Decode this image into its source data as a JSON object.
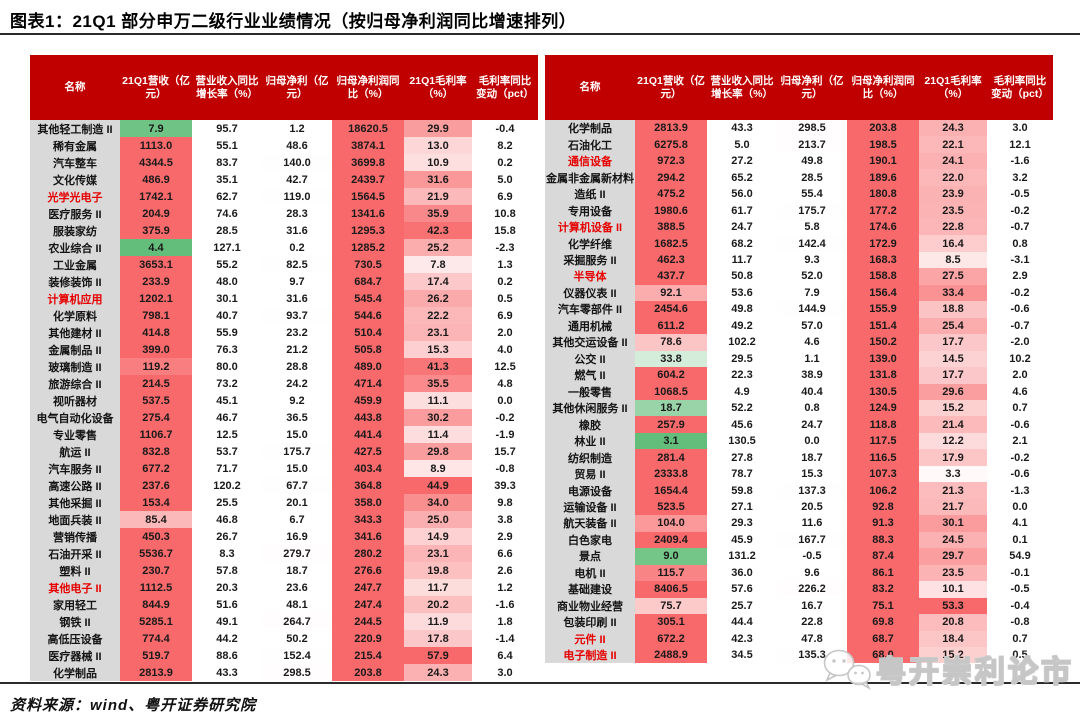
{
  "page": {
    "title": "图表1：21Q1 部分申万二级行业业绩情况（按归母净利润同比增速排列）",
    "source": "资料来源：wind、粤开证券研究院",
    "watermark_text": "粤开崇利论市",
    "watermark_icon": "wechat-chat-bubbles-icon"
  },
  "colors": {
    "header_bg": "#C00000",
    "header_text": "#FFFFFF",
    "name_col_bg": "#D9D9D9",
    "body_text": "#1A1A1A",
    "title_text": "#000000",
    "divider": "#2B2B2B",
    "highlight_name_text": "#E60000",
    "heat_red": "#F8696B",
    "heat_mid": "#FFFFFF",
    "heat_green": "#63BE7B",
    "watermark_gray": "#C6C6C6"
  },
  "chart_data": {
    "type": "table",
    "title": "21Q1 部分申万二级行业业绩情况（按归母净利润同比增速排列）",
    "columns": [
      "名称",
      "21Q1营收（亿元）",
      "营业收入同比增长率（%）",
      "归母净利（亿元）",
      "归母净利润同比（%）",
      "21Q1毛利率（%）",
      "毛利率同比变动（pct）"
    ],
    "heatmap_columns": {
      "1": {
        "min": 4.9,
        "mid": 45,
        "max": 131.2
      },
      "3": {
        "min": 0,
        "mid": 0,
        "max": 18620.5
      },
      "4": {
        "min": 3.3,
        "mid": 22.5,
        "max": 57.9
      },
      "5": {
        "min": -4.0,
        "mid": 1.5,
        "max": 45
      }
    },
    "tables": [
      {
        "side": "left",
        "rows": [
          {
            "name": "其他轻工制造 II",
            "red": false,
            "values": [
              7.9,
              95.7,
              1.2,
              18620.5,
              29.9,
              -0.4
            ]
          },
          {
            "name": "稀有金属",
            "red": false,
            "values": [
              1113.0,
              55.1,
              48.6,
              3874.1,
              13.0,
              8.2
            ]
          },
          {
            "name": "汽车整车",
            "red": false,
            "values": [
              4344.5,
              83.7,
              140.0,
              3699.8,
              10.9,
              0.2
            ]
          },
          {
            "name": "文化传媒",
            "red": false,
            "values": [
              486.9,
              35.1,
              42.7,
              2439.7,
              31.6,
              5.0
            ]
          },
          {
            "name": "光学光电子",
            "red": true,
            "values": [
              1742.1,
              62.7,
              119.0,
              1564.5,
              21.9,
              6.9
            ]
          },
          {
            "name": "医疗服务 II",
            "red": false,
            "values": [
              204.9,
              74.6,
              28.3,
              1341.6,
              35.9,
              10.8
            ]
          },
          {
            "name": "服装家纺",
            "red": false,
            "values": [
              375.9,
              28.5,
              31.6,
              1295.3,
              42.3,
              15.8
            ]
          },
          {
            "name": "农业综合 II",
            "red": false,
            "values": [
              4.4,
              127.1,
              0.2,
              1285.2,
              25.2,
              -2.3
            ]
          },
          {
            "name": "工业金属",
            "red": false,
            "values": [
              3653.1,
              55.2,
              82.5,
              730.5,
              7.8,
              1.3
            ]
          },
          {
            "name": "装修装饰 II",
            "red": false,
            "values": [
              233.9,
              48.0,
              9.7,
              684.7,
              17.4,
              0.2
            ]
          },
          {
            "name": "计算机应用",
            "red": true,
            "values": [
              1202.1,
              30.1,
              31.6,
              545.4,
              26.2,
              0.5
            ]
          },
          {
            "name": "化学原料",
            "red": false,
            "values": [
              798.1,
              40.7,
              93.7,
              544.6,
              22.2,
              6.9
            ]
          },
          {
            "name": "其他建材 II",
            "red": false,
            "values": [
              414.8,
              55.9,
              23.2,
              510.4,
              23.1,
              2.0
            ]
          },
          {
            "name": "金属制品 II",
            "red": false,
            "values": [
              399.0,
              76.3,
              21.2,
              505.8,
              15.3,
              4.0
            ]
          },
          {
            "name": "玻璃制造 II",
            "red": false,
            "values": [
              119.2,
              80.0,
              28.8,
              489.0,
              41.3,
              12.5
            ]
          },
          {
            "name": "旅游综合 II",
            "red": false,
            "values": [
              214.5,
              73.2,
              24.2,
              471.4,
              35.5,
              4.8
            ]
          },
          {
            "name": "视听器材",
            "red": false,
            "values": [
              537.5,
              45.1,
              9.2,
              459.9,
              11.1,
              0.0
            ]
          },
          {
            "name": "电气自动化设备",
            "red": false,
            "values": [
              275.4,
              46.7,
              36.5,
              443.8,
              30.2,
              -0.2
            ]
          },
          {
            "name": "专业零售",
            "red": false,
            "values": [
              1106.7,
              12.5,
              15.0,
              441.4,
              11.4,
              -1.9
            ]
          },
          {
            "name": "航运 II",
            "red": false,
            "values": [
              832.8,
              53.7,
              175.7,
              427.5,
              29.8,
              15.7
            ]
          },
          {
            "name": "汽车服务 II",
            "red": false,
            "values": [
              677.2,
              71.7,
              15.0,
              403.4,
              8.9,
              -0.8
            ]
          },
          {
            "name": "高速公路 II",
            "red": false,
            "values": [
              237.6,
              120.2,
              67.7,
              364.8,
              44.9,
              39.3
            ]
          },
          {
            "name": "其他采掘 II",
            "red": false,
            "values": [
              153.4,
              25.5,
              20.1,
              358.0,
              34.0,
              9.8
            ]
          },
          {
            "name": "地面兵装 II",
            "red": false,
            "values": [
              85.4,
              46.8,
              6.7,
              343.3,
              25.0,
              3.8
            ]
          },
          {
            "name": "营销传播",
            "red": false,
            "values": [
              450.3,
              26.7,
              16.9,
              341.6,
              14.9,
              2.9
            ]
          },
          {
            "name": "石油开采 II",
            "red": false,
            "values": [
              5536.7,
              8.3,
              279.7,
              280.2,
              23.1,
              6.6
            ]
          },
          {
            "name": "塑料 II",
            "red": false,
            "values": [
              230.7,
              57.8,
              18.7,
              276.6,
              19.8,
              2.6
            ]
          },
          {
            "name": "其他电子 II",
            "red": true,
            "values": [
              1112.5,
              20.3,
              23.6,
              247.7,
              11.7,
              1.2
            ]
          },
          {
            "name": "家用轻工",
            "red": false,
            "values": [
              844.9,
              51.6,
              48.1,
              247.4,
              20.2,
              -1.6
            ]
          },
          {
            "name": "钢铁 II",
            "red": false,
            "values": [
              5285.1,
              49.1,
              264.7,
              244.5,
              11.9,
              1.8
            ]
          },
          {
            "name": "高低压设备",
            "red": false,
            "values": [
              774.4,
              44.2,
              50.2,
              220.9,
              17.8,
              -1.4
            ]
          },
          {
            "name": "医疗器械 II",
            "red": false,
            "values": [
              519.7,
              88.6,
              152.4,
              215.4,
              57.9,
              6.4
            ]
          },
          {
            "name": "化学制品",
            "red": false,
            "clipped": true,
            "values": [
              2813.9,
              43.3,
              298.5,
              203.8,
              24.3,
              3.0
            ]
          }
        ]
      },
      {
        "side": "right",
        "rows": [
          {
            "name": "化学制品",
            "red": false,
            "values": [
              2813.9,
              43.3,
              298.5,
              203.8,
              24.3,
              3.0
            ]
          },
          {
            "name": "石油化工",
            "red": false,
            "values": [
              6275.8,
              5.0,
              213.7,
              198.5,
              22.1,
              12.1
            ]
          },
          {
            "name": "通信设备",
            "red": true,
            "values": [
              972.3,
              27.2,
              49.8,
              190.1,
              24.1,
              -1.6
            ]
          },
          {
            "name": "金属非金属新材料",
            "red": false,
            "values": [
              294.2,
              65.2,
              28.5,
              189.6,
              22.0,
              3.2
            ]
          },
          {
            "name": "造纸 II",
            "red": false,
            "values": [
              475.2,
              56.0,
              55.4,
              180.8,
              23.9,
              -0.5
            ]
          },
          {
            "name": "专用设备",
            "red": false,
            "values": [
              1980.6,
              61.7,
              175.7,
              177.2,
              23.5,
              -0.2
            ]
          },
          {
            "name": "计算机设备 II",
            "red": true,
            "values": [
              388.5,
              24.7,
              5.8,
              174.6,
              22.8,
              -0.7
            ]
          },
          {
            "name": "化学纤维",
            "red": false,
            "values": [
              1682.5,
              68.2,
              142.4,
              172.9,
              16.4,
              0.8
            ]
          },
          {
            "name": "采掘服务 II",
            "red": false,
            "values": [
              462.3,
              11.7,
              9.3,
              168.3,
              8.5,
              -3.1
            ]
          },
          {
            "name": "半导体",
            "red": true,
            "values": [
              437.7,
              50.8,
              52.0,
              158.8,
              27.5,
              2.9
            ]
          },
          {
            "name": "仪器仪表 II",
            "red": false,
            "values": [
              92.1,
              53.6,
              7.9,
              156.4,
              33.4,
              -0.2
            ]
          },
          {
            "name": "汽车零部件 II",
            "red": false,
            "values": [
              2454.6,
              49.8,
              144.9,
              155.9,
              18.8,
              -0.6
            ]
          },
          {
            "name": "通用机械",
            "red": false,
            "values": [
              611.2,
              49.2,
              57.0,
              151.4,
              25.4,
              -0.7
            ]
          },
          {
            "name": "其他交运设备 II",
            "red": false,
            "values": [
              78.6,
              102.2,
              4.6,
              150.2,
              17.7,
              -2.0
            ]
          },
          {
            "name": "公交 II",
            "red": false,
            "values": [
              33.8,
              29.5,
              1.1,
              139.0,
              14.5,
              10.2
            ]
          },
          {
            "name": "燃气 II",
            "red": false,
            "values": [
              604.2,
              22.3,
              38.9,
              131.8,
              17.7,
              2.0
            ]
          },
          {
            "name": "一般零售",
            "red": false,
            "values": [
              1068.5,
              4.9,
              40.4,
              130.5,
              29.6,
              4.6
            ]
          },
          {
            "name": "其他休闲服务 II",
            "red": false,
            "values": [
              18.7,
              52.2,
              0.8,
              124.9,
              15.2,
              0.7
            ]
          },
          {
            "name": "橡胶",
            "red": false,
            "values": [
              257.9,
              45.6,
              24.7,
              118.8,
              21.4,
              -0.6
            ]
          },
          {
            "name": "林业 II",
            "red": false,
            "values": [
              3.1,
              130.5,
              0.0,
              117.5,
              12.2,
              2.1
            ]
          },
          {
            "name": "纺织制造",
            "red": false,
            "values": [
              281.4,
              27.8,
              18.7,
              116.5,
              17.9,
              -0.2
            ]
          },
          {
            "name": "贸易 II",
            "red": false,
            "values": [
              2333.8,
              78.7,
              15.3,
              107.3,
              3.3,
              -0.6
            ]
          },
          {
            "name": "电源设备",
            "red": false,
            "values": [
              1654.4,
              59.8,
              137.3,
              106.2,
              21.3,
              -1.3
            ]
          },
          {
            "name": "运输设备 II",
            "red": false,
            "values": [
              523.5,
              27.1,
              20.5,
              92.8,
              21.7,
              0.0
            ]
          },
          {
            "name": "航天装备 II",
            "red": false,
            "values": [
              104.0,
              29.3,
              11.6,
              91.3,
              30.1,
              4.1
            ]
          },
          {
            "name": "白色家电",
            "red": false,
            "values": [
              2409.4,
              45.9,
              167.7,
              88.3,
              24.5,
              0.1
            ]
          },
          {
            "name": "景点",
            "red": false,
            "values": [
              9.0,
              131.2,
              -0.5,
              87.4,
              29.7,
              54.9
            ]
          },
          {
            "name": "电机 II",
            "red": false,
            "values": [
              115.7,
              36.0,
              9.6,
              86.1,
              23.5,
              -0.1
            ]
          },
          {
            "name": "基础建设",
            "red": false,
            "values": [
              8406.5,
              57.6,
              226.2,
              83.2,
              10.1,
              -0.5
            ]
          },
          {
            "name": "商业物业经营",
            "red": false,
            "values": [
              75.7,
              25.7,
              16.7,
              75.1,
              53.3,
              -0.4
            ]
          },
          {
            "name": "包装印刷 II",
            "red": false,
            "values": [
              305.1,
              44.4,
              22.8,
              69.8,
              20.8,
              -0.8
            ]
          },
          {
            "name": "元件 II",
            "red": true,
            "values": [
              672.2,
              42.3,
              47.8,
              68.7,
              18.4,
              0.7
            ]
          },
          {
            "name": "电子制造 II",
            "red": true,
            "values": [
              2488.9,
              34.5,
              135.3,
              68.0,
              15.2,
              0.5
            ]
          }
        ]
      }
    ]
  }
}
